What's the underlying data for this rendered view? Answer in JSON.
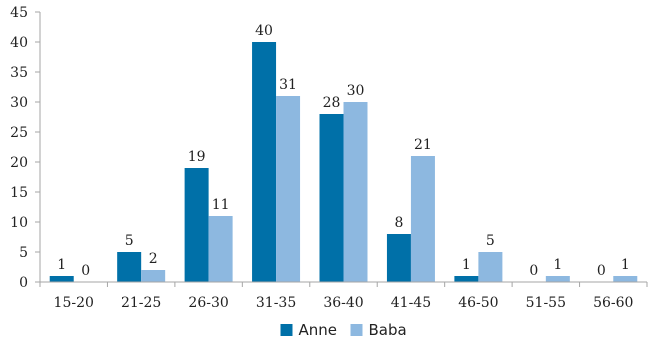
{
  "chart_data": {
    "type": "bar",
    "title": "",
    "xlabel": "",
    "ylabel": "",
    "categories": [
      "15-20",
      "21-25",
      "26-30",
      "31-35",
      "36-40",
      "41-45",
      "46-50",
      "51-55",
      "56-60"
    ],
    "series": [
      {
        "name": "Anne",
        "color": "#0070A8",
        "values": [
          1,
          5,
          19,
          40,
          28,
          8,
          1,
          0,
          0
        ]
      },
      {
        "name": "Baba",
        "color": "#8DB8E0",
        "values": [
          0,
          2,
          11,
          31,
          30,
          21,
          5,
          1,
          1
        ]
      }
    ],
    "ylim": [
      0,
      45
    ],
    "yticks": [
      0,
      5,
      10,
      15,
      20,
      25,
      30,
      35,
      40,
      45
    ],
    "grid": false,
    "data_labels": true,
    "legend_position": "bottom"
  }
}
